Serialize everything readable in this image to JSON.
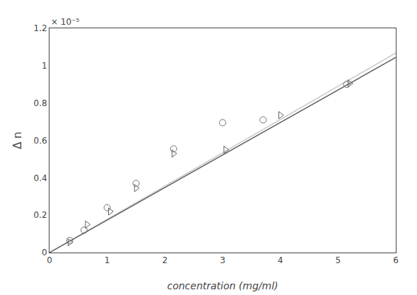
{
  "chart_data": {
    "type": "scatter",
    "xlabel": "concentration (mg/ml)",
    "ylabel": "Δ n",
    "annotations": [
      "× 10⁻⁵"
    ],
    "xlim": [
      0,
      6
    ],
    "ylim": [
      0,
      1.2e-05
    ],
    "xticks": [
      0,
      1,
      2,
      3,
      4,
      5,
      6
    ],
    "yticks": [
      {
        "value": 0,
        "label": "0"
      },
      {
        "value": 2e-06,
        "label": "0.2"
      },
      {
        "value": 4e-06,
        "label": "0.4"
      },
      {
        "value": 6e-06,
        "label": "0.6"
      },
      {
        "value": 8e-06,
        "label": "0.8"
      },
      {
        "value": 1e-05,
        "label": "1"
      },
      {
        "value": 1.2e-05,
        "label": "1.2"
      }
    ],
    "grid": false,
    "series": [
      {
        "type": "line",
        "color": "#c8c8c8",
        "x": [
          0,
          6
        ],
        "values": [
          0,
          1.068e-05
        ]
      },
      {
        "type": "line",
        "color": "#606060",
        "x": [
          0,
          6
        ],
        "values": [
          0,
          1.044e-05
        ]
      },
      {
        "type": "scatter",
        "marker": "circle-open",
        "color": "#707070",
        "x": [
          0.35,
          0.6,
          1.0,
          1.5,
          2.15,
          3.0,
          3.7,
          5.15
        ],
        "values": [
          6.5e-07,
          1.2e-06,
          2.4e-06,
          3.7e-06,
          5.55e-06,
          6.95e-06,
          7.1e-06,
          9e-06
        ]
      },
      {
        "type": "scatter",
        "marker": "triangle-right-open",
        "color": "#606060",
        "x": [
          0.35,
          0.65,
          1.05,
          1.5,
          2.15,
          3.05,
          4.0,
          5.2
        ],
        "values": [
          5.5e-07,
          1.5e-06,
          2.2e-06,
          3.45e-06,
          5.3e-06,
          5.5e-06,
          7.35e-06,
          9.05e-06
        ]
      }
    ]
  }
}
